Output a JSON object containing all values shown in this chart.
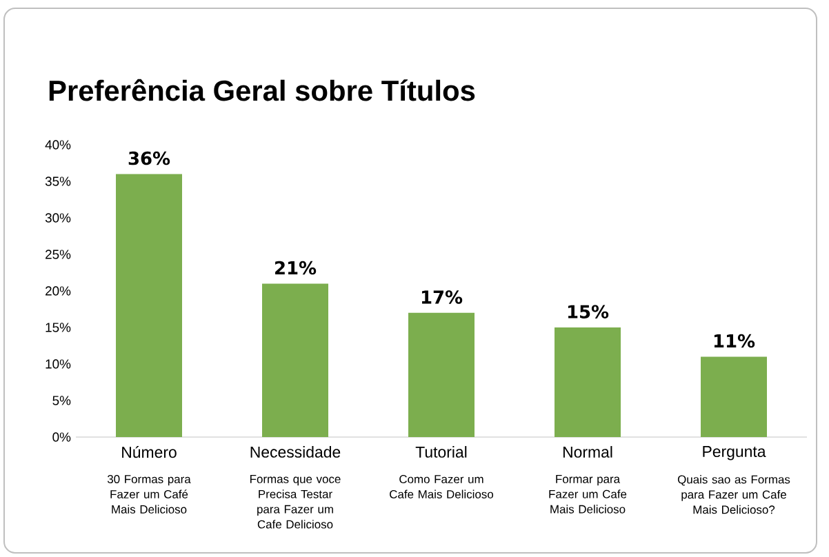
{
  "chart_data": {
    "type": "bar",
    "title": "Preferência Geral sobre Títulos",
    "categories": [
      "Número",
      "Necessidade",
      "Tutorial",
      "Normal",
      "Pergunta"
    ],
    "values": [
      36,
      21,
      17,
      15,
      11
    ],
    "value_labels": [
      "36%",
      "21%",
      "17%",
      "15%",
      "11%"
    ],
    "color": "#7cae4e",
    "ylim": [
      0,
      40
    ],
    "yticks": [
      {
        "value": 0,
        "label": "0%"
      },
      {
        "value": 5,
        "label": "5%"
      },
      {
        "value": 10,
        "label": "10%"
      },
      {
        "value": 15,
        "label": "15%"
      },
      {
        "value": 20,
        "label": "20%"
      },
      {
        "value": 25,
        "label": "25%"
      },
      {
        "value": 30,
        "label": "30%"
      },
      {
        "value": 35,
        "label": "35%"
      },
      {
        "value": 40,
        "label": "40%"
      }
    ],
    "grid": false,
    "annotations": [
      "30 Formas para Fazer um Café Mais Delicioso",
      "Formas que voce Precisa Testar para Fazer um Cafe Delicioso",
      "Como Fazer um Cafe Mais Delicioso",
      "Formar para Fazer um Cafe Mais Delicioso",
      "Quais sao as Formas para Fazer um Cafe Mais Delicioso?"
    ]
  }
}
